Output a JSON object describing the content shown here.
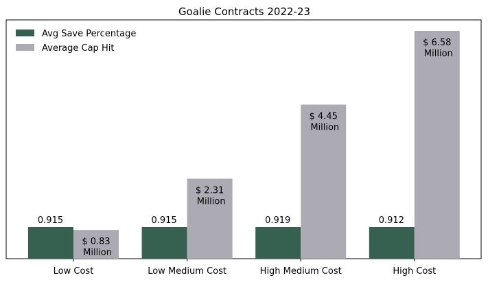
{
  "chart_data": {
    "type": "bar",
    "title": "Goalie Contracts 2022-23",
    "xlabel": "",
    "ylabel": "",
    "categories": [
      "Low Cost",
      "Low Medium Cost",
      "High Medium Cost",
      "High Cost"
    ],
    "series": [
      {
        "name": "Avg Save Percentage",
        "values": [
          0.915,
          0.915,
          0.919,
          0.912
        ],
        "labels": [
          "0.915",
          "0.915",
          "0.919",
          "0.912"
        ],
        "color": "#366150"
      },
      {
        "name": "Average Cap Hit",
        "values": [
          0.83,
          2.31,
          4.45,
          6.58
        ],
        "labels": [
          [
            "$ 0.83",
            " Million"
          ],
          [
            "$ 2.31",
            " Million"
          ],
          [
            "$ 4.45",
            " Million"
          ],
          [
            "$ 6.58",
            " Million"
          ]
        ],
        "color": "#acabb3"
      }
    ],
    "y_axis_visible": false,
    "grid": false,
    "legend": "top-left"
  }
}
